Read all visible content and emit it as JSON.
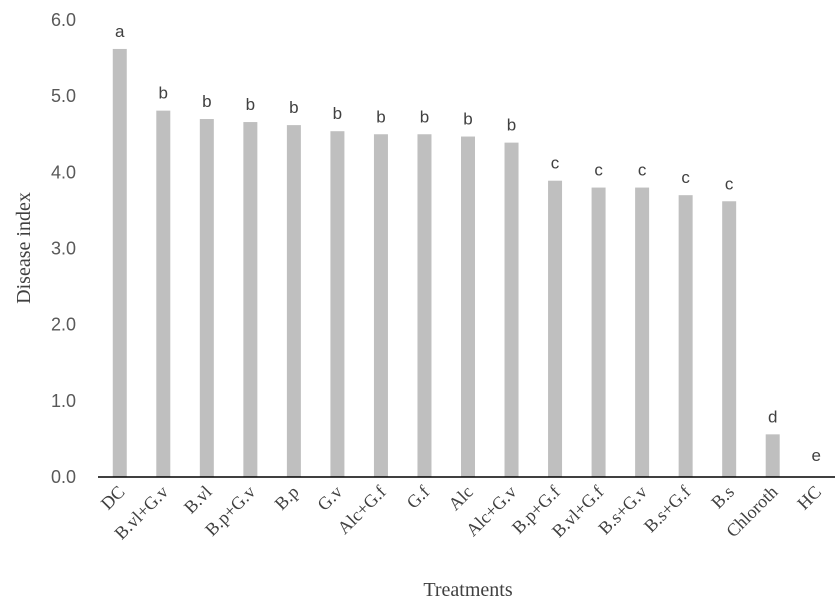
{
  "chart_data": {
    "type": "bar",
    "categories": [
      "DC",
      "B.vl+G.v",
      "B.vl",
      "B.p+G.v",
      "B.p",
      "G.v",
      "Alc+G.f",
      "G.f",
      "Alc",
      "Alc+G.v",
      "B.p+G.f",
      "B.vl+G.f",
      "B.s+G.v",
      "B.s+G.f",
      "B.s",
      "Chloroth",
      "HC"
    ],
    "values": [
      5.62,
      4.81,
      4.7,
      4.66,
      4.62,
      4.54,
      4.5,
      4.5,
      4.47,
      4.39,
      3.89,
      3.8,
      3.8,
      3.7,
      3.62,
      0.56,
      0.0
    ],
    "letters": [
      "a",
      "b",
      "b",
      "b",
      "b",
      "b",
      "b",
      "b",
      "b",
      "b",
      "c",
      "c",
      "c",
      "c",
      "c",
      "d",
      "e"
    ],
    "title": "",
    "xlabel": "Treatments",
    "ylabel": "Disease index",
    "ylim": [
      0,
      6.0
    ],
    "yticks": [
      "0.0",
      "1.0",
      "2.0",
      "3.0",
      "4.0",
      "5.0",
      "6.0"
    ],
    "grid": false,
    "bar_color": "#bfbfbf"
  }
}
